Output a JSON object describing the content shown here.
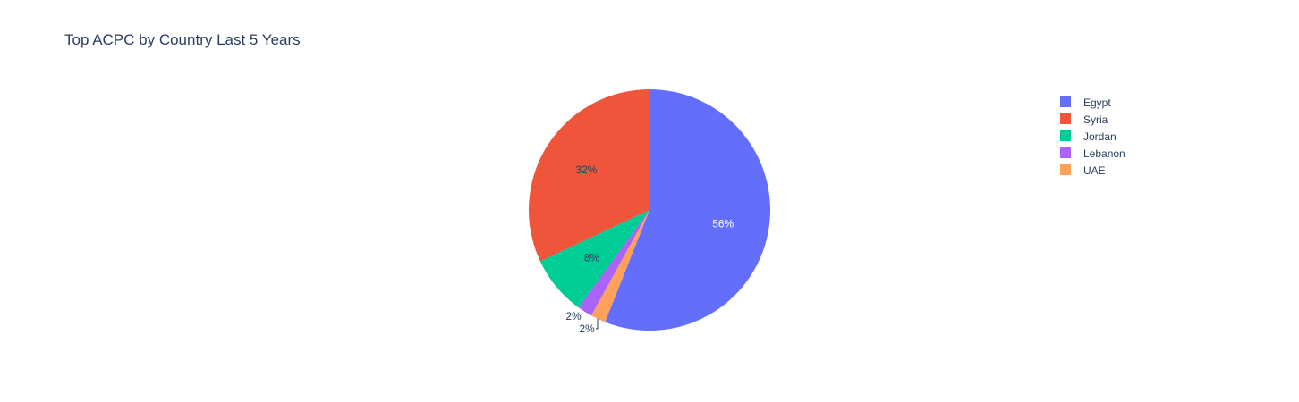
{
  "chart_data": {
    "type": "pie",
    "title": "Top ACPC by Country Last 5 Years",
    "legend_position": "top-right",
    "slices": [
      {
        "label": "Egypt",
        "value": 56,
        "text": "56%",
        "color": "#636efa"
      },
      {
        "label": "UAE",
        "value": 2,
        "text": "2%",
        "color": "#ffa15a"
      },
      {
        "label": "Lebanon",
        "value": 2,
        "text": "2%",
        "color": "#ab63fa"
      },
      {
        "label": "Jordan",
        "value": 8,
        "text": "8%",
        "color": "#00cc96"
      },
      {
        "label": "Syria",
        "value": 32,
        "text": "32%",
        "color": "#ef553b"
      }
    ],
    "legend_order": [
      "Egypt",
      "Syria",
      "Jordan",
      "Lebanon",
      "UAE"
    ]
  }
}
